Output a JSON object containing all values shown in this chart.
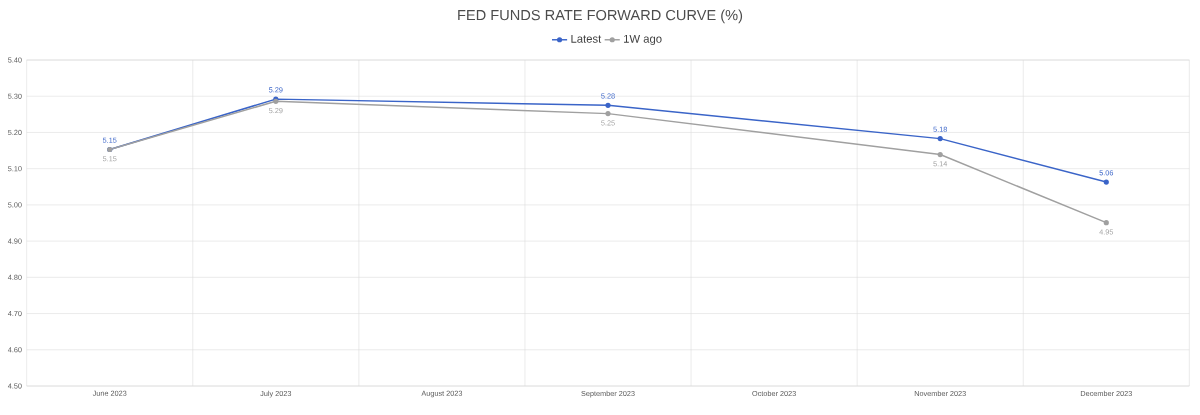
{
  "chart_data": {
    "type": "line",
    "title": "FED FUNDS RATE FORWARD CURVE (%)",
    "categories": [
      "June 2023",
      "July 2023",
      "August 2023",
      "September 2023",
      "October 2023",
      "November 2023",
      "December 2023"
    ],
    "series": [
      {
        "name": "Latest",
        "color": "#3a64c8",
        "values": [
          5.153,
          5.292,
          null,
          5.275,
          null,
          5.183,
          5.063
        ],
        "value_labels": [
          "5.15",
          "5.29",
          null,
          "5.28",
          null,
          "5.18",
          "5.06"
        ]
      },
      {
        "name": "1W ago",
        "color": "#a0a0a0",
        "values": [
          5.153,
          5.286,
          null,
          5.252,
          null,
          5.139,
          4.951
        ],
        "value_labels": [
          "5.15",
          "5.29",
          null,
          "5.25",
          null,
          "5.14",
          "4.95"
        ]
      }
    ],
    "ylim": [
      4.5,
      5.4
    ],
    "yticks": [
      {
        "value": 4.5,
        "label": "4.50"
      },
      {
        "value": 4.6,
        "label": "4.60"
      },
      {
        "value": 4.7,
        "label": "4.70"
      },
      {
        "value": 4.8,
        "label": "4.80"
      },
      {
        "value": 4.9,
        "label": "4.90"
      },
      {
        "value": 5.0,
        "label": "5.00"
      },
      {
        "value": 5.1,
        "label": "5.10"
      },
      {
        "value": 5.2,
        "label": "5.20"
      },
      {
        "value": 5.3,
        "label": "5.30"
      },
      {
        "value": 5.4,
        "label": "5.40"
      }
    ],
    "grid": true,
    "legend": "top",
    "marker": "circle",
    "line_style": "solid"
  }
}
